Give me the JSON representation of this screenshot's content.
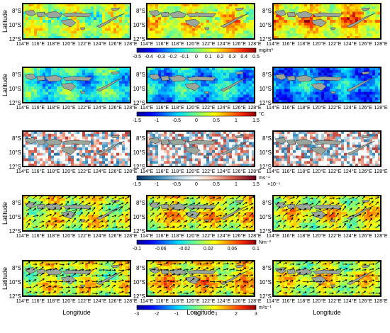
{
  "chart_data": {
    "type": "heatmap",
    "layout": {
      "rows": 5,
      "cols": 3
    },
    "x_ticks": [
      "114°E",
      "116°E",
      "118°E",
      "120°E",
      "122°E",
      "124°E",
      "126°E",
      "128°E"
    ],
    "y_ticks": [
      "8°S",
      "10°S",
      "12°S"
    ],
    "ylabel": "Latitude",
    "xlabel": "Longitude",
    "xlim": [
      114,
      128
    ],
    "ylim": [
      -12,
      -7
    ],
    "rows": [
      {
        "field": "chlorophyll",
        "colormap": "jet",
        "vectors": false,
        "cbar_unit": "mg/m³",
        "cbar_ticks": [
          "-0.5",
          "-0.4",
          "-0.3",
          "-0.2",
          "-0.1",
          "0",
          "0.1",
          "0.2",
          "0.3",
          "0.4",
          "0.5"
        ],
        "cbar_range": [
          -0.5,
          0.5
        ],
        "panel_means": [
          0.05,
          0.12,
          0.18
        ]
      },
      {
        "field": "sst",
        "colormap": "jet",
        "vectors": false,
        "cbar_unit": "°C",
        "cbar_ticks": [
          "-1.5",
          "-1",
          "-0.5",
          "0",
          "0.5",
          "1",
          "1.5"
        ],
        "cbar_range": [
          -1.5,
          1.5
        ],
        "panel_means": [
          -0.35,
          -0.5,
          -0.7
        ]
      },
      {
        "field": "divergent",
        "colormap": "rdbu",
        "vectors": false,
        "cbar_unit": "ms⁻¹",
        "cbar_exponent": "×10⁻⁵",
        "cbar_ticks": [
          "-1.5",
          "-1",
          "-0.5",
          "0",
          "0.5",
          "1",
          "1.5"
        ],
        "cbar_range": [
          -1.5,
          1.5
        ],
        "panel_means": [
          0,
          0,
          0
        ]
      },
      {
        "field": "wind_stress",
        "colormap": "jet",
        "vectors": true,
        "cbar_unit": "Nm⁻²",
        "cbar_ticks": [
          "-0.1",
          "-0.06",
          "-0.02",
          "0.02",
          "0.06",
          "0.1"
        ],
        "cbar_range": [
          -0.1,
          0.1
        ],
        "panel_means": [
          0.02,
          0.03,
          0.025
        ]
      },
      {
        "field": "current",
        "colormap": "jet",
        "vectors": true,
        "cbar_unit": "m²s⁻¹",
        "cbar_ticks": [
          "-3",
          "-2",
          "-1",
          "0",
          "1",
          "2",
          "3"
        ],
        "cbar_range": [
          -3,
          3
        ],
        "panel_means": [
          0.6,
          1.0,
          0.7
        ]
      }
    ],
    "islands": [
      [
        [
          114.3,
          -8.1
        ],
        [
          115.4,
          -7.95
        ],
        [
          115.7,
          -8.5
        ],
        [
          115.1,
          -8.8
        ],
        [
          114.5,
          -8.5
        ]
      ],
      [
        [
          115.8,
          -8.3
        ],
        [
          116.8,
          -8.2
        ],
        [
          116.9,
          -8.8
        ],
        [
          116.0,
          -8.9
        ]
      ],
      [
        [
          116.9,
          -8.4
        ],
        [
          118.2,
          -8.1
        ],
        [
          119.1,
          -8.5
        ],
        [
          118.9,
          -8.9
        ],
        [
          117.4,
          -9.0
        ]
      ],
      [
        [
          119.2,
          -8.5
        ],
        [
          120.5,
          -8.3
        ],
        [
          122.2,
          -8.4
        ],
        [
          123.0,
          -8.4
        ],
        [
          122.6,
          -8.9
        ],
        [
          120.6,
          -8.8
        ],
        [
          119.6,
          -8.9
        ]
      ],
      [
        [
          119.0,
          -9.4
        ],
        [
          120.3,
          -9.2
        ],
        [
          120.9,
          -9.7
        ],
        [
          120.3,
          -10.3
        ],
        [
          119.3,
          -9.9
        ]
      ],
      [
        [
          121.5,
          -10.4
        ],
        [
          122.1,
          -10.4
        ],
        [
          122.0,
          -10.7
        ],
        [
          121.6,
          -10.7
        ]
      ],
      [
        [
          123.6,
          -10.2
        ],
        [
          124.8,
          -9.6
        ],
        [
          125.8,
          -9.0
        ],
        [
          127.2,
          -8.4
        ],
        [
          126.5,
          -8.8
        ],
        [
          125.0,
          -9.8
        ],
        [
          124.0,
          -10.4
        ]
      ],
      [
        [
          125.5,
          -7.7
        ],
        [
          126.6,
          -7.6
        ],
        [
          126.4,
          -7.9
        ],
        [
          125.7,
          -8.0
        ]
      ]
    ]
  }
}
